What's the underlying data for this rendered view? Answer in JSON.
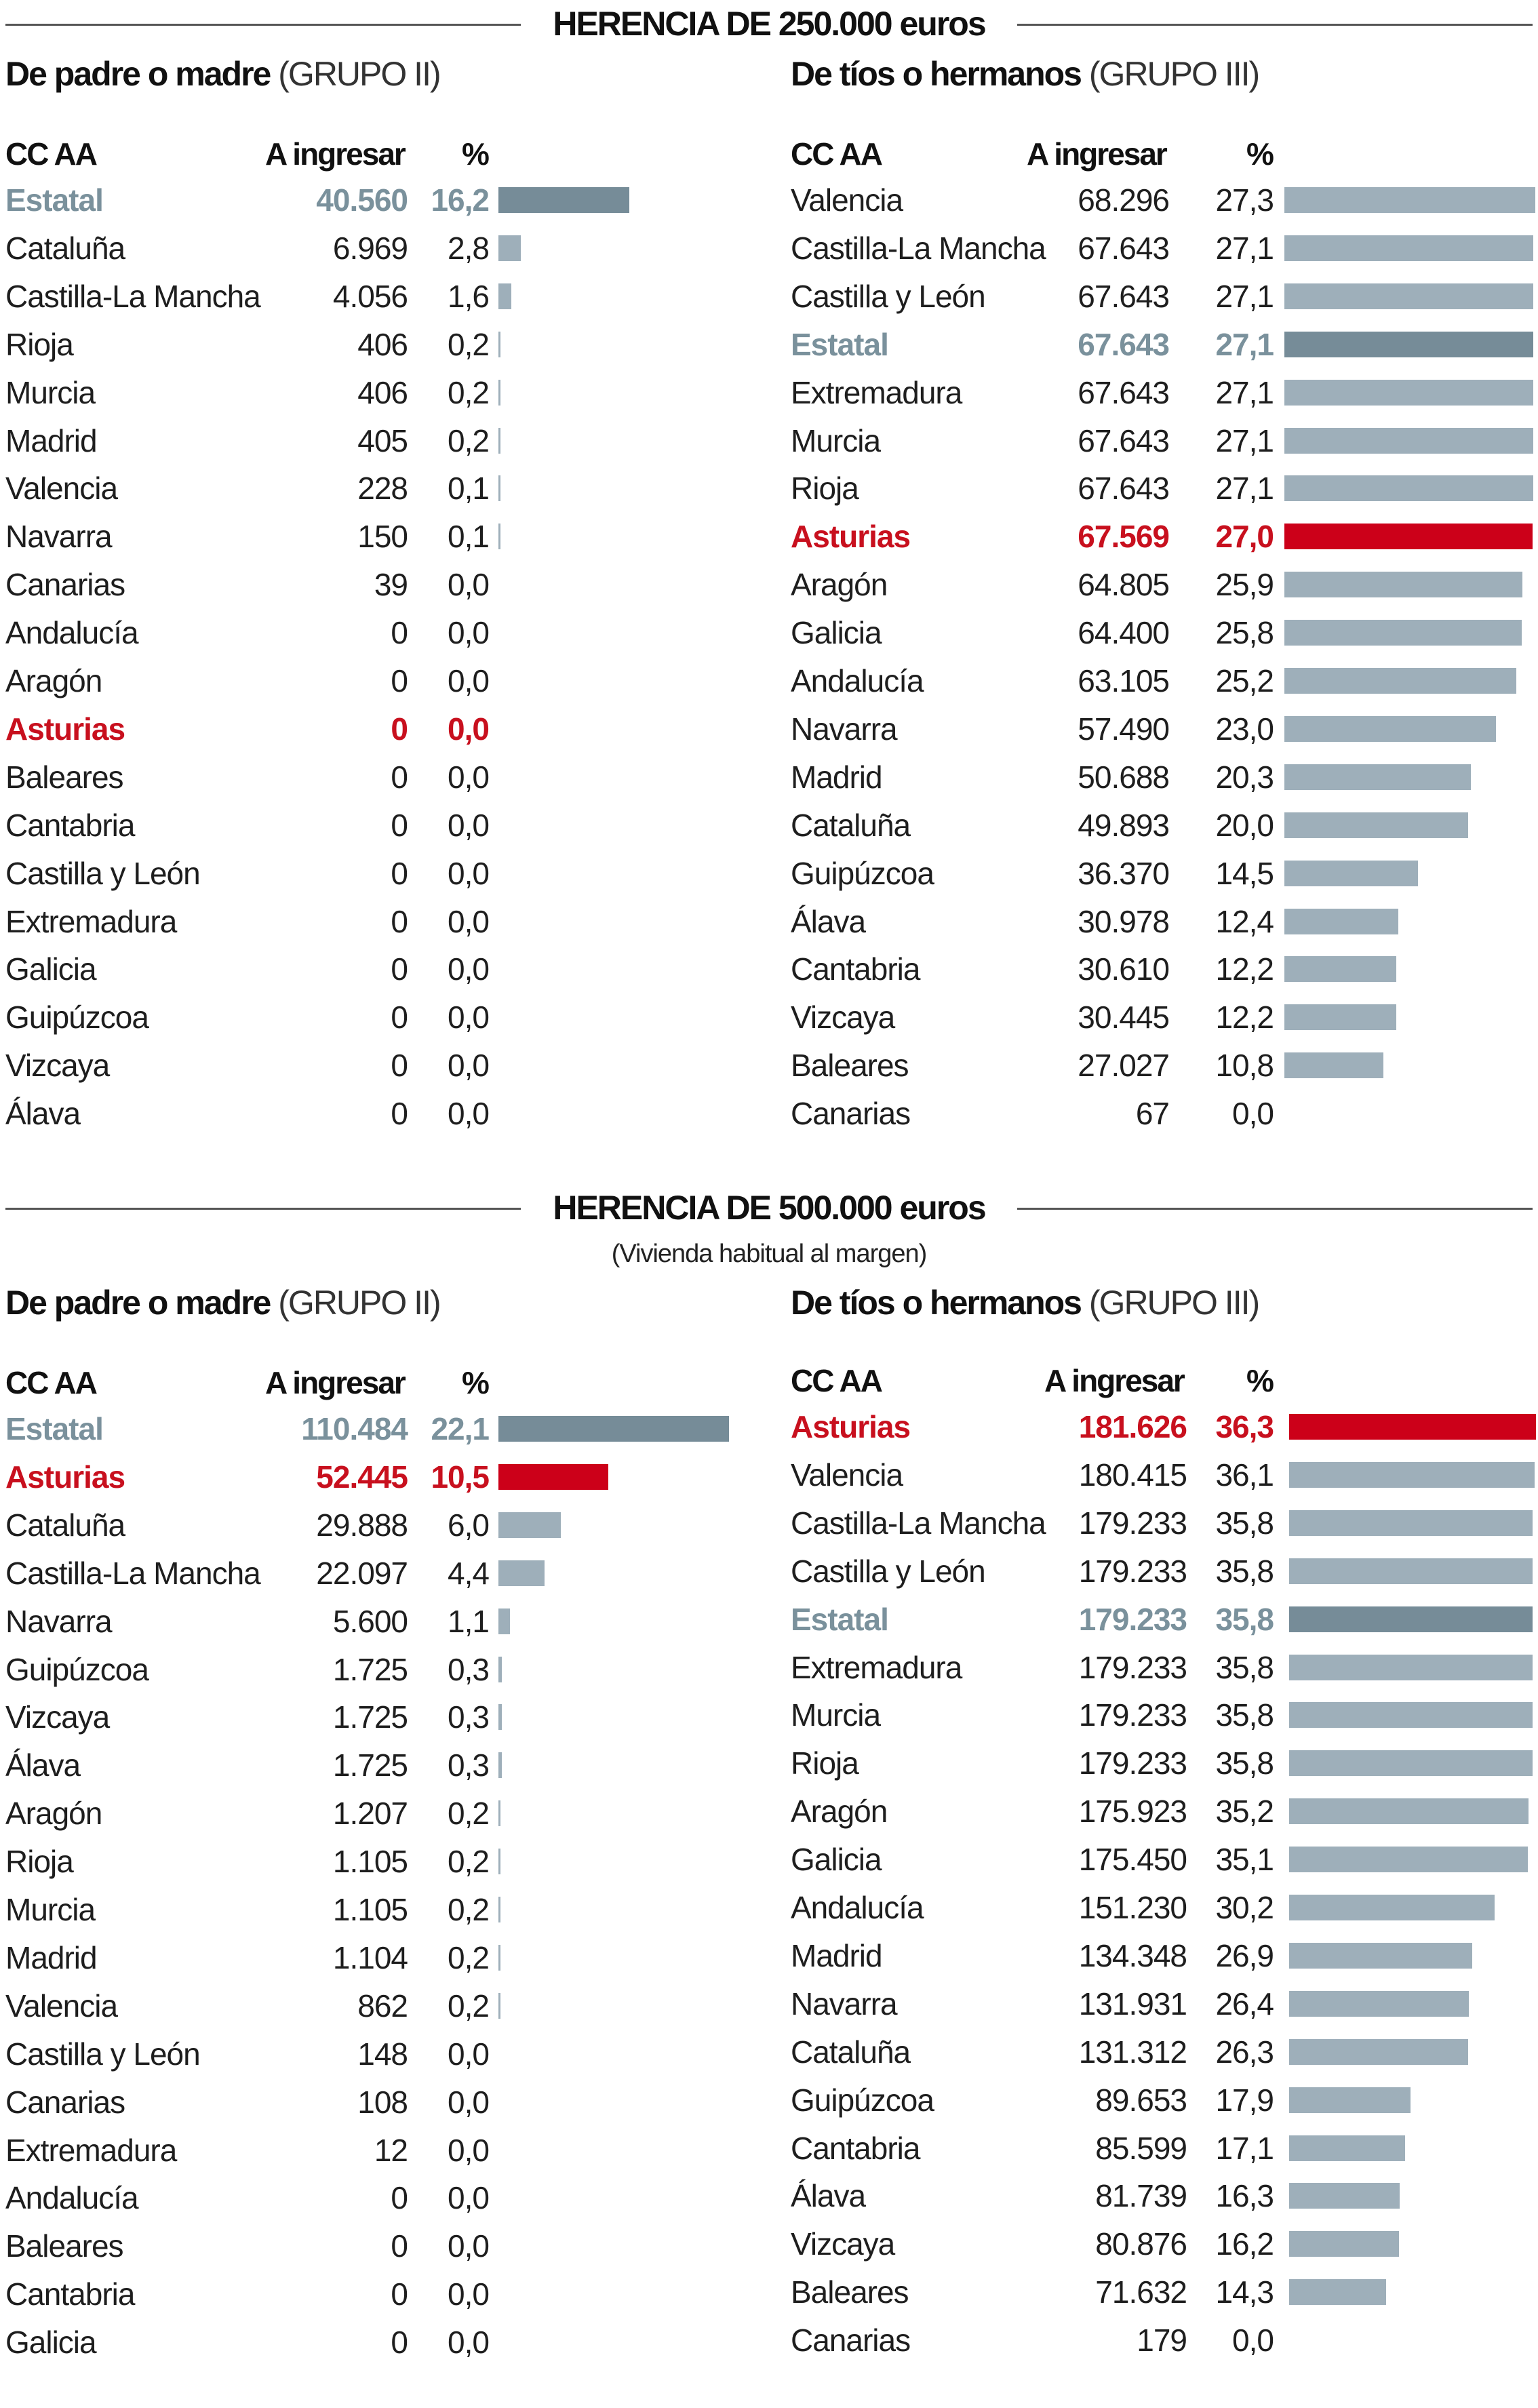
{
  "chart_data": [
    {
      "type": "bar",
      "orientation": "horizontal",
      "section": "HERENCIA DE 250.000 euros",
      "title": "De padre o madre",
      "subtitle": "(GRUPO II)",
      "columns": [
        "CC AA",
        "A ingresar",
        "%"
      ],
      "rows": [
        {
          "name": "Estatal",
          "amount": "40.560",
          "pct": "16,2",
          "value": 16.2,
          "highlight": "estatal"
        },
        {
          "name": "Cataluña",
          "amount": "6.969",
          "pct": "2,8",
          "value": 2.8
        },
        {
          "name": "Castilla-La Mancha",
          "amount": "4.056",
          "pct": "1,6",
          "value": 1.6
        },
        {
          "name": "Rioja",
          "amount": "406",
          "pct": "0,2",
          "value": 0.2
        },
        {
          "name": "Murcia",
          "amount": "406",
          "pct": "0,2",
          "value": 0.2
        },
        {
          "name": "Madrid",
          "amount": "405",
          "pct": "0,2",
          "value": 0.2
        },
        {
          "name": "Valencia",
          "amount": "228",
          "pct": "0,1",
          "value": 0.1
        },
        {
          "name": "Navarra",
          "amount": "150",
          "pct": "0,1",
          "value": 0.1
        },
        {
          "name": "Canarias",
          "amount": "39",
          "pct": "0,0",
          "value": 0.0
        },
        {
          "name": "Andalucía",
          "amount": "0",
          "pct": "0,0",
          "value": 0.0
        },
        {
          "name": "Aragón",
          "amount": "0",
          "pct": "0,0",
          "value": 0.0
        },
        {
          "name": "Asturias",
          "amount": "0",
          "pct": "0,0",
          "value": 0.0,
          "highlight": "asturias"
        },
        {
          "name": "Baleares",
          "amount": "0",
          "pct": "0,0",
          "value": 0.0
        },
        {
          "name": "Cantabria",
          "amount": "0",
          "pct": "0,0",
          "value": 0.0
        },
        {
          "name": "Castilla y León",
          "amount": "0",
          "pct": "0,0",
          "value": 0.0
        },
        {
          "name": "Extremadura",
          "amount": "0",
          "pct": "0,0",
          "value": 0.0
        },
        {
          "name": "Galicia",
          "amount": "0",
          "pct": "0,0",
          "value": 0.0
        },
        {
          "name": "Guipúzcoa",
          "amount": "0",
          "pct": "0,0",
          "value": 0.0
        },
        {
          "name": "Vizcaya",
          "amount": "0",
          "pct": "0,0",
          "value": 0.0
        },
        {
          "name": "Álava",
          "amount": "0",
          "pct": "0,0",
          "value": 0.0
        }
      ],
      "xlim": [
        0,
        16.2
      ]
    },
    {
      "type": "bar",
      "orientation": "horizontal",
      "section": "HERENCIA DE 250.000 euros",
      "title": "De tíos o hermanos",
      "subtitle": "(GRUPO III)",
      "columns": [
        "CC AA",
        "A ingresar",
        "%"
      ],
      "rows": [
        {
          "name": "Valencia",
          "amount": "68.296",
          "pct": "27,3",
          "value": 27.3
        },
        {
          "name": "Castilla-La Mancha",
          "amount": "67.643",
          "pct": "27,1",
          "value": 27.1
        },
        {
          "name": "Castilla y León",
          "amount": "67.643",
          "pct": "27,1",
          "value": 27.1
        },
        {
          "name": "Estatal",
          "amount": "67.643",
          "pct": "27,1",
          "value": 27.1,
          "highlight": "estatal"
        },
        {
          "name": "Extremadura",
          "amount": "67.643",
          "pct": "27,1",
          "value": 27.1
        },
        {
          "name": "Murcia",
          "amount": "67.643",
          "pct": "27,1",
          "value": 27.1
        },
        {
          "name": "Rioja",
          "amount": "67.643",
          "pct": "27,1",
          "value": 27.1
        },
        {
          "name": "Asturias",
          "amount": "67.569",
          "pct": "27,0",
          "value": 27.0,
          "highlight": "asturias"
        },
        {
          "name": "Aragón",
          "amount": "64.805",
          "pct": "25,9",
          "value": 25.9
        },
        {
          "name": "Galicia",
          "amount": "64.400",
          "pct": "25,8",
          "value": 25.8
        },
        {
          "name": "Andalucía",
          "amount": "63.105",
          "pct": "25,2",
          "value": 25.2
        },
        {
          "name": "Navarra",
          "amount": "57.490",
          "pct": "23,0",
          "value": 23.0
        },
        {
          "name": "Madrid",
          "amount": "50.688",
          "pct": "20,3",
          "value": 20.3
        },
        {
          "name": "Cataluña",
          "amount": "49.893",
          "pct": "20,0",
          "value": 20.0
        },
        {
          "name": "Guipúzcoa",
          "amount": "36.370",
          "pct": "14,5",
          "value": 14.5
        },
        {
          "name": "Álava",
          "amount": "30.978",
          "pct": "12,4",
          "value": 12.4
        },
        {
          "name": "Cantabria",
          "amount": "30.610",
          "pct": "12,2",
          "value": 12.2
        },
        {
          "name": "Vizcaya",
          "amount": "30.445",
          "pct": "12,2",
          "value": 12.2
        },
        {
          "name": "Baleares",
          "amount": "27.027",
          "pct": "10,8",
          "value": 10.8
        },
        {
          "name": "Canarias",
          "amount": "67",
          "pct": "0,0",
          "value": 0.0
        }
      ],
      "xlim": [
        0,
        27.3
      ]
    },
    {
      "type": "bar",
      "orientation": "horizontal",
      "section": "HERENCIA DE 500.000 euros",
      "note": "(Vivienda habitual al margen)",
      "title": "De padre o madre",
      "subtitle": "(GRUPO II)",
      "columns": [
        "CC AA",
        "A ingresar",
        "%"
      ],
      "rows": [
        {
          "name": "Estatal",
          "amount": "110.484",
          "pct": "22,1",
          "value": 22.1,
          "highlight": "estatal"
        },
        {
          "name": "Asturias",
          "amount": "52.445",
          "pct": "10,5",
          "value": 10.5,
          "highlight": "asturias"
        },
        {
          "name": "Cataluña",
          "amount": "29.888",
          "pct": "6,0",
          "value": 6.0
        },
        {
          "name": "Castilla-La Mancha",
          "amount": "22.097",
          "pct": "4,4",
          "value": 4.4
        },
        {
          "name": "Navarra",
          "amount": "5.600",
          "pct": "1,1",
          "value": 1.1
        },
        {
          "name": "Guipúzcoa",
          "amount": "1.725",
          "pct": "0,3",
          "value": 0.3
        },
        {
          "name": "Vizcaya",
          "amount": "1.725",
          "pct": "0,3",
          "value": 0.3
        },
        {
          "name": "Álava",
          "amount": "1.725",
          "pct": "0,3",
          "value": 0.3
        },
        {
          "name": "Aragón",
          "amount": "1.207",
          "pct": "0,2",
          "value": 0.2
        },
        {
          "name": "Rioja",
          "amount": "1.105",
          "pct": "0,2",
          "value": 0.2
        },
        {
          "name": "Murcia",
          "amount": "1.105",
          "pct": "0,2",
          "value": 0.2
        },
        {
          "name": "Madrid",
          "amount": "1.104",
          "pct": "0,2",
          "value": 0.2
        },
        {
          "name": "Valencia",
          "amount": "862",
          "pct": "0,2",
          "value": 0.2
        },
        {
          "name": "Castilla y León",
          "amount": "148",
          "pct": "0,0",
          "value": 0.0
        },
        {
          "name": "Canarias",
          "amount": "108",
          "pct": "0,0",
          "value": 0.0
        },
        {
          "name": "Extremadura",
          "amount": "12",
          "pct": "0,0",
          "value": 0.0
        },
        {
          "name": "Andalucía",
          "amount": "0",
          "pct": "0,0",
          "value": 0.0
        },
        {
          "name": "Baleares",
          "amount": "0",
          "pct": "0,0",
          "value": 0.0
        },
        {
          "name": "Cantabria",
          "amount": "0",
          "pct": "0,0",
          "value": 0.0
        },
        {
          "name": "Galicia",
          "amount": "0",
          "pct": "0,0",
          "value": 0.0
        }
      ],
      "xlim": [
        0,
        22.1
      ]
    },
    {
      "type": "bar",
      "orientation": "horizontal",
      "section": "HERENCIA DE 500.000 euros",
      "note": "(Vivienda habitual al margen)",
      "title": "De tíos o hermanos",
      "subtitle": "(GRUPO III)",
      "columns": [
        "CC AA",
        "A ingresar",
        "%"
      ],
      "rows": [
        {
          "name": "Asturias",
          "amount": "181.626",
          "pct": "36,3",
          "value": 36.3,
          "highlight": "asturias"
        },
        {
          "name": "Valencia",
          "amount": "180.415",
          "pct": "36,1",
          "value": 36.1
        },
        {
          "name": "Castilla-La Mancha",
          "amount": "179.233",
          "pct": "35,8",
          "value": 35.8
        },
        {
          "name": "Castilla y León",
          "amount": "179.233",
          "pct": "35,8",
          "value": 35.8
        },
        {
          "name": "Estatal",
          "amount": "179.233",
          "pct": "35,8",
          "value": 35.8,
          "highlight": "estatal"
        },
        {
          "name": "Extremadura",
          "amount": "179.233",
          "pct": "35,8",
          "value": 35.8
        },
        {
          "name": "Murcia",
          "amount": "179.233",
          "pct": "35,8",
          "value": 35.8
        },
        {
          "name": "Rioja",
          "amount": "179.233",
          "pct": "35,8",
          "value": 35.8
        },
        {
          "name": "Aragón",
          "amount": "175.923",
          "pct": "35,2",
          "value": 35.2
        },
        {
          "name": "Galicia",
          "amount": "175.450",
          "pct": "35,1",
          "value": 35.1
        },
        {
          "name": "Andalucía",
          "amount": "151.230",
          "pct": "30,2",
          "value": 30.2
        },
        {
          "name": "Madrid",
          "amount": "134.348",
          "pct": "26,9",
          "value": 26.9
        },
        {
          "name": "Navarra",
          "amount": "131.931",
          "pct": "26,4",
          "value": 26.4
        },
        {
          "name": "Cataluña",
          "amount": "131.312",
          "pct": "26,3",
          "value": 26.3
        },
        {
          "name": "Guipúzcoa",
          "amount": "89.653",
          "pct": "17,9",
          "value": 17.9
        },
        {
          "name": "Cantabria",
          "amount": "85.599",
          "pct": "17,1",
          "value": 17.1
        },
        {
          "name": "Álava",
          "amount": "81.739",
          "pct": "16,3",
          "value": 16.3
        },
        {
          "name": "Vizcaya",
          "amount": "80.876",
          "pct": "16,2",
          "value": 16.2
        },
        {
          "name": "Baleares",
          "amount": "71.632",
          "pct": "14,3",
          "value": 14.3
        },
        {
          "name": "Canarias",
          "amount": "179",
          "pct": "0,0",
          "value": 0.0
        }
      ],
      "xlim": [
        0,
        36.3
      ]
    }
  ],
  "sections": [
    {
      "title": "HERENCIA DE 250.000 euros"
    },
    {
      "title": "HERENCIA DE 500.000 euros",
      "note": "(Vivienda habitual al margen)"
    }
  ],
  "colors": {
    "estatal_bar": "#768c98",
    "default_bar": "#9eafba",
    "asturias_bar": "#cc0019",
    "estatal_text": "#7a919c",
    "asturias_text": "#c8101e"
  }
}
